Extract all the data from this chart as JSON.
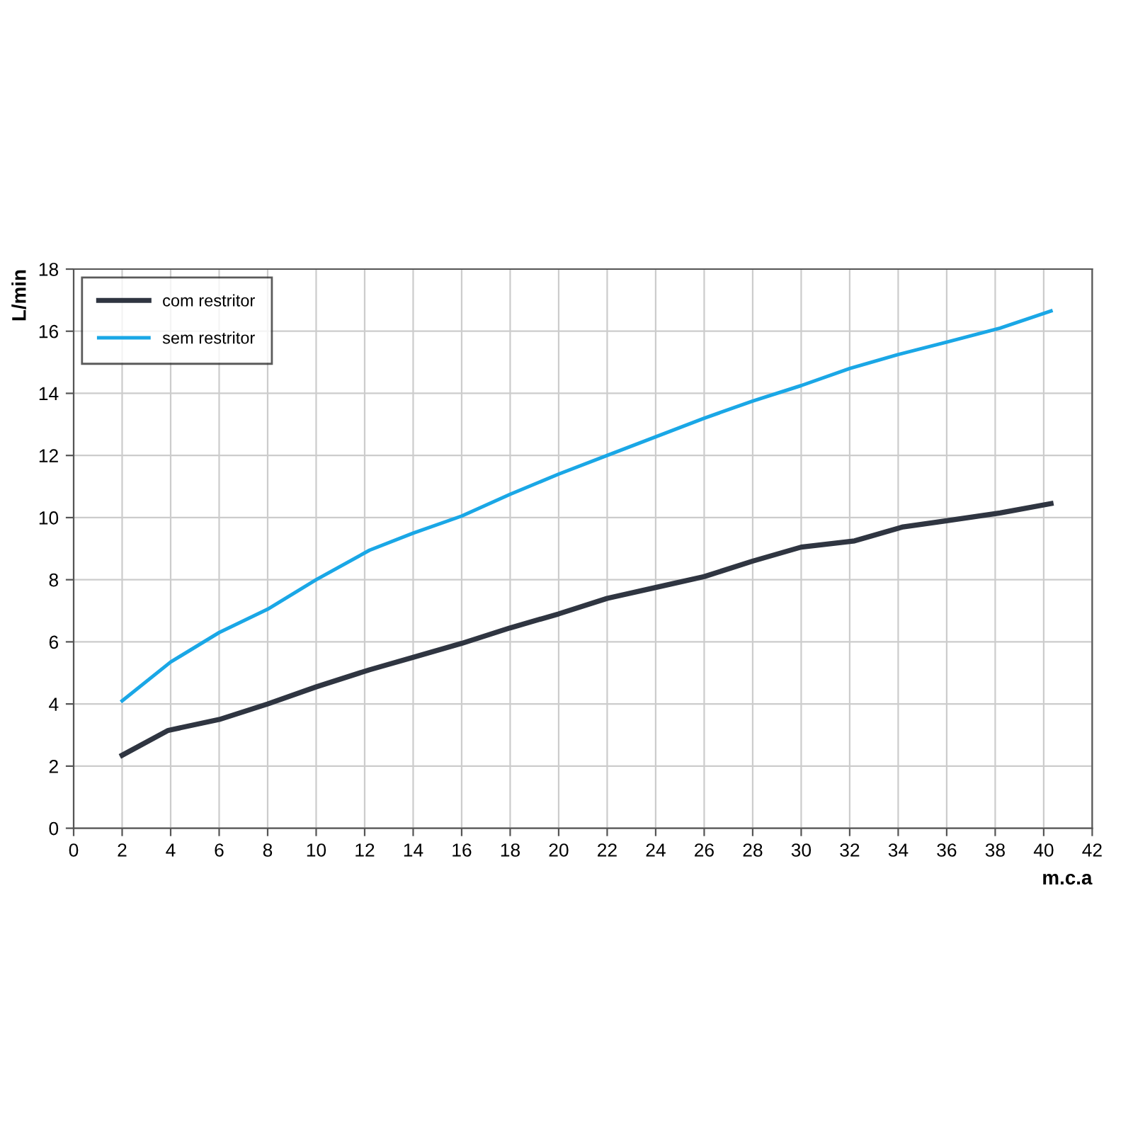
{
  "chart_data": {
    "type": "line",
    "xlabel": "m.c.a",
    "ylabel": "L/min",
    "xlim": [
      0,
      42
    ],
    "xticks": [
      0,
      2,
      4,
      6,
      8,
      10,
      12,
      14,
      16,
      18,
      20,
      22,
      24,
      26,
      28,
      30,
      32,
      34,
      36,
      38,
      40,
      42
    ],
    "ylim": [
      0,
      18
    ],
    "yticks": [
      0,
      2,
      4,
      6,
      8,
      10,
      12,
      14,
      16,
      18
    ],
    "grid": true,
    "legend": "top left",
    "marker": "none",
    "line_style": "solid",
    "series": [
      {
        "name": "com restritor",
        "color": "#2f3541",
        "x": [
          2,
          3.9,
          6,
          8,
          10,
          12.2,
          14,
          16,
          18,
          20,
          22,
          24,
          26,
          28,
          30,
          32.2,
          34.2,
          36,
          38.2,
          40.3
        ],
        "values": [
          2.35,
          3.15,
          3.5,
          4.0,
          4.55,
          5.1,
          5.5,
          5.95,
          6.45,
          6.9,
          7.4,
          7.75,
          8.1,
          8.6,
          9.05,
          9.25,
          9.7,
          9.9,
          10.15,
          10.45
        ]
      },
      {
        "name": "sem restritor",
        "color": "#1aa7e6",
        "x": [
          2,
          4,
          6,
          8,
          10,
          12.2,
          14,
          16,
          18,
          20,
          22,
          24,
          26,
          28,
          30,
          32,
          34,
          36,
          38.2,
          40.3
        ],
        "values": [
          4.1,
          5.35,
          6.3,
          7.05,
          8.0,
          8.95,
          9.5,
          10.05,
          10.75,
          11.4,
          12.0,
          12.6,
          13.2,
          13.75,
          14.25,
          14.8,
          15.25,
          15.65,
          16.1,
          16.65
        ]
      }
    ]
  }
}
